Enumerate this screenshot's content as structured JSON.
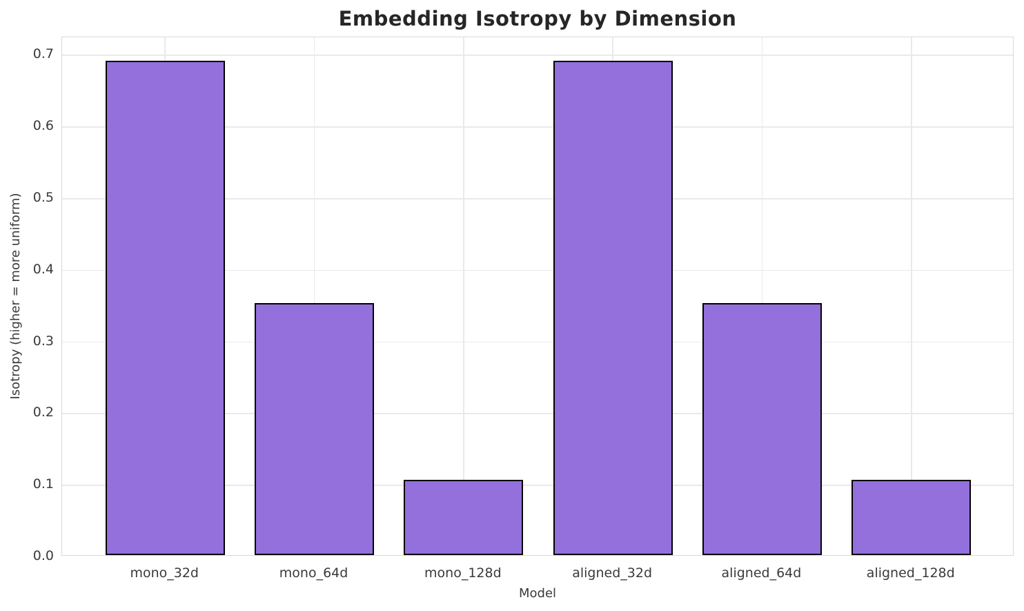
{
  "chart_data": {
    "type": "bar",
    "title": "Embedding Isotropy by Dimension",
    "xlabel": "Model",
    "ylabel": "Isotropy (higher = more uniform)",
    "categories": [
      "mono_32d",
      "mono_64d",
      "mono_128d",
      "aligned_32d",
      "aligned_64d",
      "aligned_128d"
    ],
    "values": [
      0.69,
      0.352,
      0.105,
      0.69,
      0.352,
      0.105
    ],
    "yticks": [
      0.0,
      0.1,
      0.2,
      0.3,
      0.4,
      0.5,
      0.6,
      0.7
    ],
    "ylim": [
      0,
      0.7245
    ],
    "bar_width_fraction": 0.8,
    "x_edge_padding": 0.69,
    "grid": true,
    "legend": "none",
    "colors": {
      "bar_fill": "#9370DB",
      "bar_edge": "#000000",
      "gridline": "#e9e9e9",
      "spine": "#d9d9d9",
      "title_text": "#262626",
      "tick_text": "#3a3a3a",
      "background": "#ffffff"
    }
  }
}
